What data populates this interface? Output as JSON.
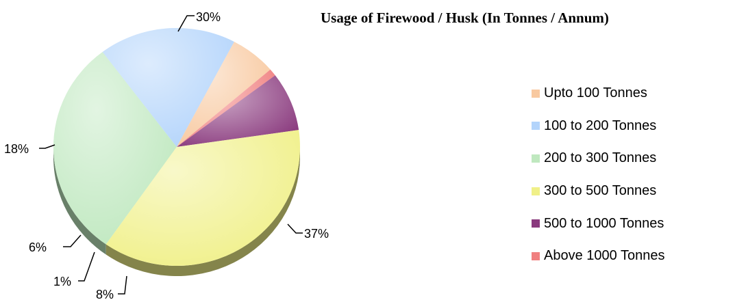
{
  "chart_data": {
    "type": "pie",
    "title": "Usage of Firewood / Husk (In Tonnes / Annum)",
    "categories": [
      "Upto 100 Tonnes",
      "100 to 200 Tonnes",
      "200 to 300 Tonnes",
      "300 to 500 Tonnes",
      "500 to 1000 Tonnes",
      "Above 1000 Tonnes"
    ],
    "values": [
      6,
      18,
      30,
      37,
      8,
      1
    ],
    "data_labels": [
      "6%",
      "18%",
      "30%",
      "37%",
      "8%",
      "1%"
    ],
    "colors": [
      "#f8c9a0",
      "#b3d4fb",
      "#bfe8bf",
      "#f0f088",
      "#8a3a7e",
      "#f08080"
    ],
    "legend_position": "right",
    "style": "3d"
  }
}
